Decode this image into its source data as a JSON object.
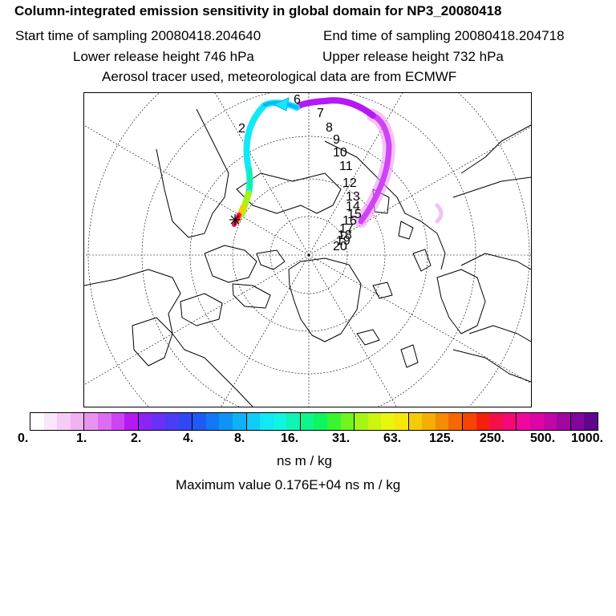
{
  "header": {
    "title": "Column-integrated emission sensitivity in global domain for NP3_20080418",
    "start_label": "Start time of sampling 20080418.204640",
    "end_label": "End time of sampling 20080418.204718",
    "lower_label": "Lower release height  746 hPa",
    "upper_label": "Upper release height  732 hPa",
    "tracer_label": "Aerosol tracer used, meteorological data are from ECMWF"
  },
  "map": {
    "projection": "polar stereographic, north pole",
    "hour_labels": [
      "2",
      "6",
      "7",
      "8",
      "9",
      "10",
      "11",
      "12",
      "13",
      "14",
      "15",
      "16",
      "17",
      "18",
      "19",
      "20"
    ],
    "release_marker": "release-point-star"
  },
  "colorbar": {
    "tick_labels": [
      "0.",
      "1.",
      "2.",
      "4.",
      "8.",
      "16.",
      "31.",
      "63.",
      "125.",
      "250.",
      "500.",
      "1000."
    ],
    "colors": [
      "#ffffff",
      "#fbe6fb",
      "#f6ccf6",
      "#f0b2f0",
      "#e993f1",
      "#dc6cf2",
      "#cc44f4",
      "#b41af4",
      "#8b24f5",
      "#6a30f5",
      "#4b3cf5",
      "#2f48f5",
      "#1e5af5",
      "#1478f5",
      "#0f94f6",
      "#0db2f6",
      "#10ccf6",
      "#12e8f6",
      "#0ff5e0",
      "#0ef5b4",
      "#0ef58a",
      "#0ef560",
      "#38f530",
      "#70f520",
      "#a4f515",
      "#ccf510",
      "#eaf50c",
      "#f5e80a",
      "#f5cc08",
      "#f5ae06",
      "#f58c05",
      "#f56804",
      "#f54404",
      "#f5200a",
      "#f5104a",
      "#f50878",
      "#f206a0",
      "#dc06a4",
      "#c006a4",
      "#a006a0",
      "#80069c",
      "#60068c"
    ],
    "units": "ns m / kg",
    "max_text": "Maximum value  0.176E+04 ns m / kg"
  }
}
